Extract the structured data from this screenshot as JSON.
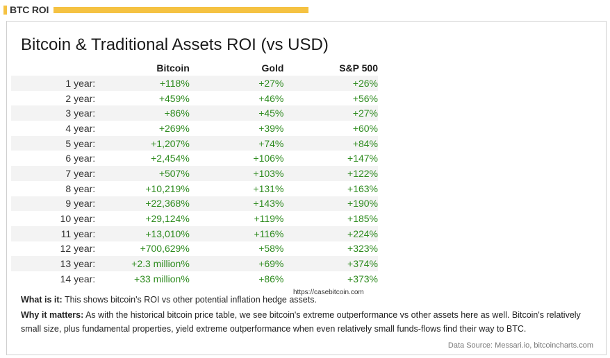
{
  "header": {
    "label": "BTC ROI"
  },
  "title": "Bitcoin & Traditional Assets ROI (vs USD)",
  "table": {
    "columns": [
      "Bitcoin",
      "Gold",
      "S&P 500"
    ],
    "rows": [
      {
        "label": "1 year:",
        "bitcoin": "+118%",
        "gold": "+27%",
        "sp500": "+26%"
      },
      {
        "label": "2 year:",
        "bitcoin": "+459%",
        "gold": "+46%",
        "sp500": "+56%"
      },
      {
        "label": "3 year:",
        "bitcoin": "+86%",
        "gold": "+45%",
        "sp500": "+27%"
      },
      {
        "label": "4 year:",
        "bitcoin": "+269%",
        "gold": "+39%",
        "sp500": "+60%"
      },
      {
        "label": "5 year:",
        "bitcoin": "+1,207%",
        "gold": "+74%",
        "sp500": "+84%"
      },
      {
        "label": "6 year:",
        "bitcoin": "+2,454%",
        "gold": "+106%",
        "sp500": "+147%"
      },
      {
        "label": "7 year:",
        "bitcoin": "+507%",
        "gold": "+103%",
        "sp500": "+122%"
      },
      {
        "label": "8 year:",
        "bitcoin": "+10,219%",
        "gold": "+131%",
        "sp500": "+163%"
      },
      {
        "label": "9 year:",
        "bitcoin": "+22,368%",
        "gold": "+143%",
        "sp500": "+190%"
      },
      {
        "label": "10 year:",
        "bitcoin": "+29,124%",
        "gold": "+119%",
        "sp500": "+185%"
      },
      {
        "label": "11 year:",
        "bitcoin": "+13,010%",
        "gold": "+116%",
        "sp500": "+224%"
      },
      {
        "label": "12 year:",
        "bitcoin": "+700,629%",
        "gold": "+58%",
        "sp500": "+323%"
      },
      {
        "label": "13 year:",
        "bitcoin": "+2.3 million%",
        "gold": "+69%",
        "sp500": "+374%"
      },
      {
        "label": "14 year:",
        "bitcoin": "+33 million%",
        "gold": "+86%",
        "sp500": "+373%"
      }
    ]
  },
  "watermark": "https://casebitcoin.com",
  "what_is_it": {
    "label": "What is it:",
    "text": " This shows bitcoin's ROI vs other potential inflation hedge assets."
  },
  "why_it_matters": {
    "label": "Why it matters:",
    "text": " As with the historical bitcoin price table, we see bitcoin's extreme outperformance vs other assets here as well. Bitcoin's relatively small size, plus fundamental properties, yield extreme outperformance when even relatively small funds-flows find their way to BTC."
  },
  "data_source": "Data Source: Messari.io, bitcoincharts.com",
  "colors": {
    "accent": "#f5c242",
    "positive": "#2e8b1f"
  }
}
